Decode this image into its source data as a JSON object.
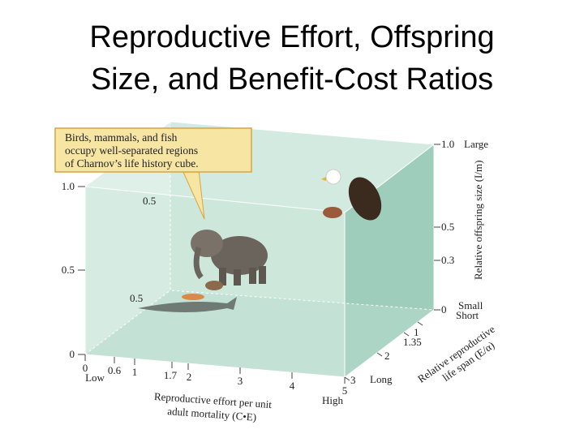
{
  "header": {
    "title_lines": [
      "Reproductive Effort, Offspring",
      "Size, and Benefit-Cost Ratios"
    ]
  },
  "callout": {
    "lines": [
      "Birds, mammals, and fish",
      "occupy well-separated regions",
      "of Charnov’s life history cube."
    ]
  },
  "left_axis": {
    "ticks": [
      "1.0",
      "0.5",
      "0"
    ]
  },
  "inner_ticks": [
    "0.5",
    "0.5"
  ],
  "x_axis": {
    "ticks": [
      "0",
      "0.6",
      "1",
      "1.7",
      "2",
      "3",
      "4",
      "5"
    ],
    "low": "Low",
    "high": "High",
    "label_lines": [
      "Reproductive effort per unit",
      "adult mortality (C•E)"
    ]
  },
  "right_axis": {
    "ticks": [
      "1.0",
      "0.5",
      "0.3",
      "0"
    ],
    "large": "Large",
    "small": "Small",
    "label": "Relative offspring size (I/m)"
  },
  "depth_axis": {
    "short": "Short",
    "ticks": [
      "1",
      "1.35",
      "2",
      "3"
    ],
    "long": "Long",
    "label_lines": [
      "Relative reproductive",
      "life span (E/α)"
    ]
  }
}
